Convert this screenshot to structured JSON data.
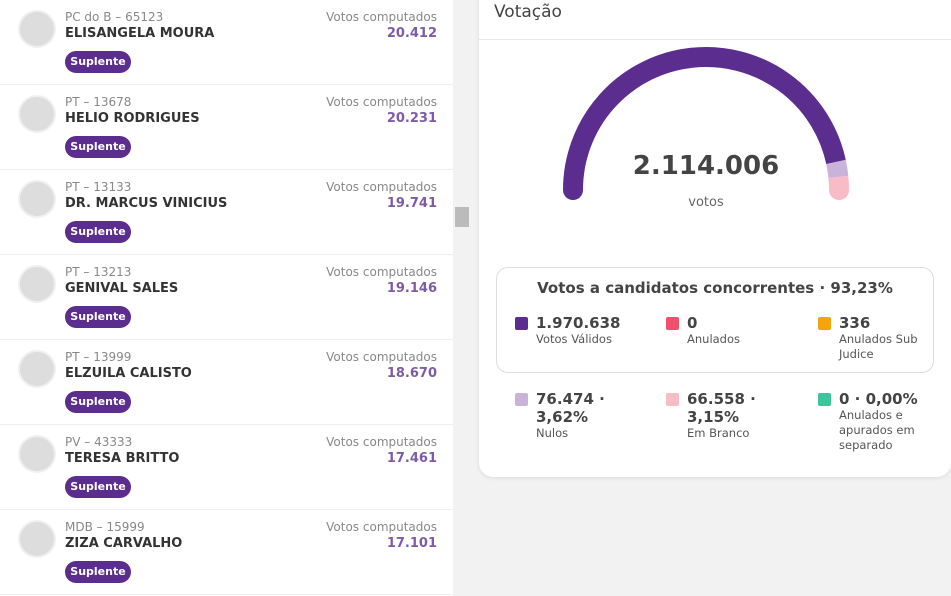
{
  "candidates": [
    {
      "party": "PC do B – 65123",
      "name": "ELISANGELA MOURA",
      "votes_label": "Votos computados",
      "votes": "20.412",
      "status": "Suplente"
    },
    {
      "party": "PT – 13678",
      "name": "HELIO RODRIGUES",
      "votes_label": "Votos computados",
      "votes": "20.231",
      "status": "Suplente"
    },
    {
      "party": "PT – 13133",
      "name": "DR. MARCUS VINICIUS",
      "votes_label": "Votos computados",
      "votes": "19.741",
      "status": "Suplente"
    },
    {
      "party": "PT – 13213",
      "name": "GENIVAL SALES",
      "votes_label": "Votos computados",
      "votes": "19.146",
      "status": "Suplente"
    },
    {
      "party": "PT – 13999",
      "name": "ELZUILA CALISTO",
      "votes_label": "Votos computados",
      "votes": "18.670",
      "status": "Suplente"
    },
    {
      "party": "PV – 43333",
      "name": "TERESA BRITTO",
      "votes_label": "Votos computados",
      "votes": "17.461",
      "status": "Suplente"
    },
    {
      "party": "MDB – 15999",
      "name": "ZIZA CARVALHO",
      "votes_label": "Votos computados",
      "votes": "17.101",
      "status": "Suplente"
    }
  ],
  "voting": {
    "title": "Votação",
    "total": {
      "value": 2114006,
      "label": "2.114.006"
    },
    "total_unit": "votos",
    "summary_title": "Votos a candidatos concorrentes · 93,23%",
    "stats": [
      {
        "value": 1970638,
        "label": "1.970.638",
        "name": "Votos Válidos",
        "color": "#5b2d8e"
      },
      {
        "value": 0,
        "label": "0",
        "name": "Anulados",
        "color": "#f0506e"
      },
      {
        "value": 336,
        "label": "336",
        "name": "Anulados Sub Judice",
        "color": "#f5a40c"
      },
      {
        "value": 76474,
        "label": "76.474 · 3,62%",
        "name": "Nulos",
        "color": "#c9b3d9"
      },
      {
        "value": 66558,
        "label": "66.558 · 3,15%",
        "name": "Em Branco",
        "color": "#f8bcc6"
      },
      {
        "value": 0,
        "label": "0 · 0,00%",
        "name": "Anulados e apurados em separado",
        "color": "#3cc49a"
      }
    ]
  }
}
